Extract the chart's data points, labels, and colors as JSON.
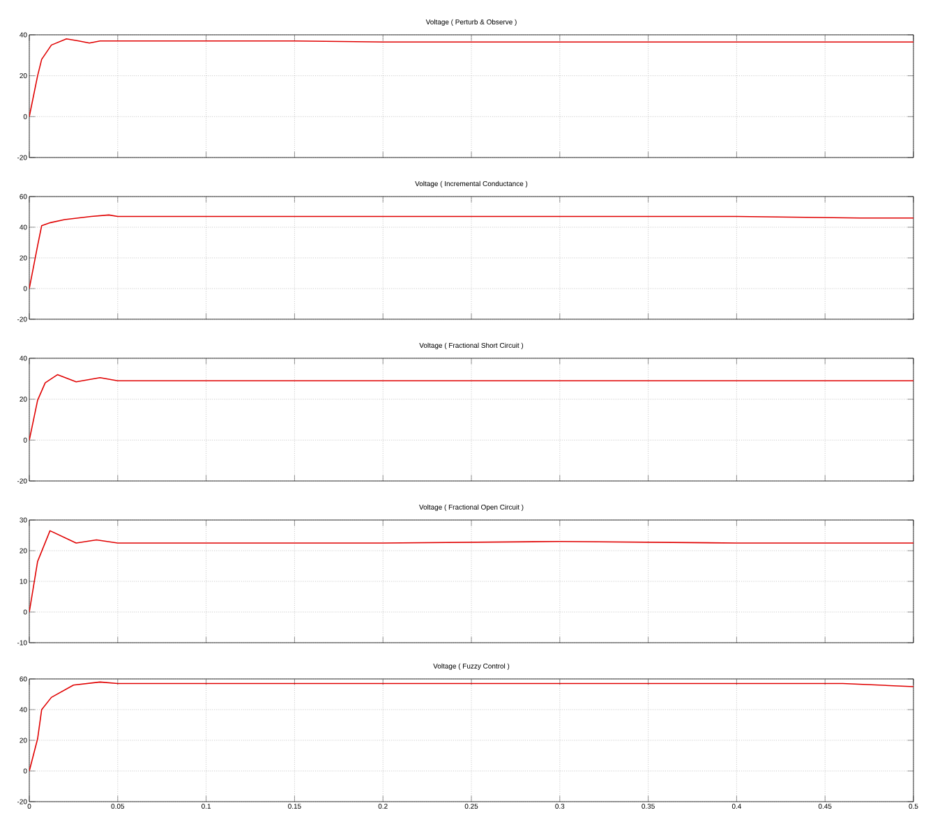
{
  "chart_data": [
    {
      "type": "line",
      "title": "Voltage ( Perturb & Observe )",
      "x": [
        0,
        0.0047,
        0.007,
        0.0125,
        0.021,
        0.028,
        0.034,
        0.04,
        0.05,
        0.1,
        0.15,
        0.2,
        0.3,
        0.4,
        0.5
      ],
      "series": [
        {
          "color": "#e00000",
          "values": [
            0,
            20,
            28,
            35,
            38,
            37,
            36,
            37,
            37,
            37,
            37,
            36.5,
            36.5,
            36.5,
            36.5
          ]
        }
      ],
      "xlim": [
        0,
        0.5
      ],
      "ylim": [
        -20,
        40
      ],
      "xticks": [
        0,
        0.05,
        0.1,
        0.15,
        0.2,
        0.25,
        0.3,
        0.35,
        0.4,
        0.45,
        0.5
      ],
      "yticks": [
        -20,
        0,
        20,
        40
      ],
      "grid": true,
      "tick_labels": "y"
    },
    {
      "type": "line",
      "title": "Voltage ( Incremental Conductance )",
      "x": [
        0,
        0.0047,
        0.007,
        0.012,
        0.02,
        0.035,
        0.045,
        0.05,
        0.1,
        0.2,
        0.3,
        0.4,
        0.47,
        0.5
      ],
      "series": [
        {
          "color": "#e00000",
          "values": [
            0,
            28,
            41,
            43,
            45,
            47,
            48,
            47,
            47,
            47,
            47,
            47,
            46,
            46
          ]
        }
      ],
      "xlim": [
        0,
        0.5
      ],
      "ylim": [
        -20,
        60
      ],
      "xticks": [
        0,
        0.05,
        0.1,
        0.15,
        0.2,
        0.25,
        0.3,
        0.35,
        0.4,
        0.45,
        0.5
      ],
      "yticks": [
        -20,
        0,
        20,
        40,
        60
      ],
      "grid": true,
      "tick_labels": "y"
    },
    {
      "type": "line",
      "title": "Voltage ( Fractional Short Circuit )",
      "x": [
        0,
        0.0047,
        0.009,
        0.016,
        0.0265,
        0.04,
        0.05,
        0.1,
        0.2,
        0.3,
        0.4,
        0.5
      ],
      "series": [
        {
          "color": "#e00000",
          "values": [
            0,
            19.5,
            28,
            32,
            28.5,
            30.5,
            29,
            29,
            29,
            29,
            29,
            29
          ]
        }
      ],
      "xlim": [
        0,
        0.5
      ],
      "ylim": [
        -20,
        40
      ],
      "xticks": [
        0,
        0.05,
        0.1,
        0.15,
        0.2,
        0.25,
        0.3,
        0.35,
        0.4,
        0.45,
        0.5
      ],
      "yticks": [
        -20,
        0,
        20,
        40
      ],
      "grid": true,
      "tick_labels": "y"
    },
    {
      "type": "line",
      "title": "Voltage ( Fractional Open Circuit )",
      "x": [
        0,
        0.0047,
        0.0117,
        0.0265,
        0.038,
        0.05,
        0.1,
        0.2,
        0.3,
        0.4,
        0.5
      ],
      "series": [
        {
          "color": "#e00000",
          "values": [
            0,
            16.5,
            26.5,
            22.5,
            23.5,
            22.5,
            22.5,
            22.5,
            23,
            22.5,
            22.5
          ]
        }
      ],
      "xlim": [
        0,
        0.5
      ],
      "ylim": [
        -10,
        30
      ],
      "xticks": [
        0,
        0.05,
        0.1,
        0.15,
        0.2,
        0.25,
        0.3,
        0.35,
        0.4,
        0.45,
        0.5
      ],
      "yticks": [
        -10,
        0,
        10,
        20,
        30
      ],
      "grid": true,
      "tick_labels": "y"
    },
    {
      "type": "line",
      "title": "Voltage ( Fuzzy Control )",
      "x": [
        0,
        0.0047,
        0.007,
        0.0125,
        0.025,
        0.04,
        0.05,
        0.1,
        0.2,
        0.3,
        0.4,
        0.46,
        0.5
      ],
      "series": [
        {
          "color": "#e00000",
          "values": [
            0,
            21,
            40,
            48,
            56,
            58,
            57,
            57,
            57,
            57,
            57,
            57,
            55
          ]
        }
      ],
      "xlim": [
        0,
        0.5
      ],
      "ylim": [
        -20,
        60
      ],
      "xticks": [
        0,
        0.05,
        0.1,
        0.15,
        0.2,
        0.25,
        0.3,
        0.35,
        0.4,
        0.45,
        0.5
      ],
      "yticks": [
        -20,
        0,
        20,
        40,
        60
      ],
      "grid": true
    }
  ]
}
